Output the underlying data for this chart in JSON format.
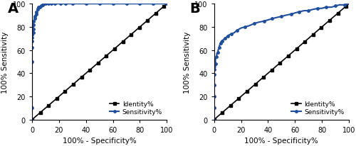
{
  "panel_A_label": "A",
  "panel_B_label": "B",
  "xlabel": "100% - Specificity%",
  "ylabel": "100% Sensitivity",
  "xlim": [
    0,
    100
  ],
  "ylim": [
    0,
    100
  ],
  "xticks": [
    0,
    20,
    40,
    60,
    80,
    100
  ],
  "yticks": [
    0,
    20,
    40,
    60,
    80,
    100
  ],
  "legend_sensitivity": "Sensitivity%",
  "legend_identity": "Identity%",
  "roc_color": "#1f4e9c",
  "identity_color": "#000000",
  "roc_A_x": [
    0,
    0,
    0,
    0,
    0,
    0,
    0,
    0,
    0,
    0,
    0,
    0,
    0,
    1,
    1,
    1,
    1,
    1,
    1,
    1,
    1,
    2,
    2,
    2,
    2,
    3,
    3,
    3,
    3,
    4,
    4,
    4,
    5,
    5,
    6,
    6,
    7,
    7,
    8,
    8,
    9,
    9,
    10,
    11,
    12,
    13,
    14,
    15,
    17,
    19,
    21,
    23,
    25,
    27,
    30,
    35,
    40,
    45,
    50,
    55,
    60,
    65,
    70,
    75,
    80,
    85,
    90,
    95,
    100
  ],
  "roc_A_y": [
    0,
    5,
    10,
    30,
    50,
    58,
    62,
    65,
    68,
    70,
    71,
    72,
    73,
    74,
    75,
    76,
    78,
    80,
    82,
    84,
    85,
    86,
    87,
    88,
    89,
    90,
    91,
    92,
    93,
    94,
    95,
    96,
    97,
    97,
    97,
    98,
    98,
    99,
    99,
    100,
    100,
    100,
    100,
    100,
    100,
    100,
    100,
    100,
    100,
    100,
    100,
    100,
    100,
    100,
    100,
    100,
    100,
    100,
    100,
    100,
    100,
    100,
    100,
    100,
    100,
    100,
    100,
    100,
    100
  ],
  "roc_B_x": [
    0,
    0,
    0,
    0,
    0,
    0,
    0,
    0,
    0,
    0,
    0,
    1,
    1,
    1,
    2,
    2,
    3,
    3,
    4,
    4,
    5,
    5,
    6,
    7,
    8,
    9,
    10,
    11,
    13,
    15,
    17,
    20,
    23,
    26,
    30,
    33,
    37,
    40,
    43,
    46,
    50,
    53,
    57,
    60,
    63,
    67,
    70,
    73,
    77,
    80,
    83,
    87,
    90,
    93,
    97,
    100
  ],
  "roc_B_y": [
    0,
    5,
    10,
    15,
    20,
    25,
    30,
    35,
    39,
    41,
    43,
    45,
    48,
    52,
    54,
    57,
    58,
    60,
    62,
    64,
    66,
    67,
    68,
    69,
    70,
    71,
    72,
    73,
    74,
    75,
    77,
    79,
    80,
    81,
    83,
    84,
    85,
    86,
    87,
    88,
    89,
    90,
    91,
    92,
    93,
    94,
    94,
    95,
    96,
    96,
    97,
    97,
    98,
    99,
    99,
    100
  ]
}
